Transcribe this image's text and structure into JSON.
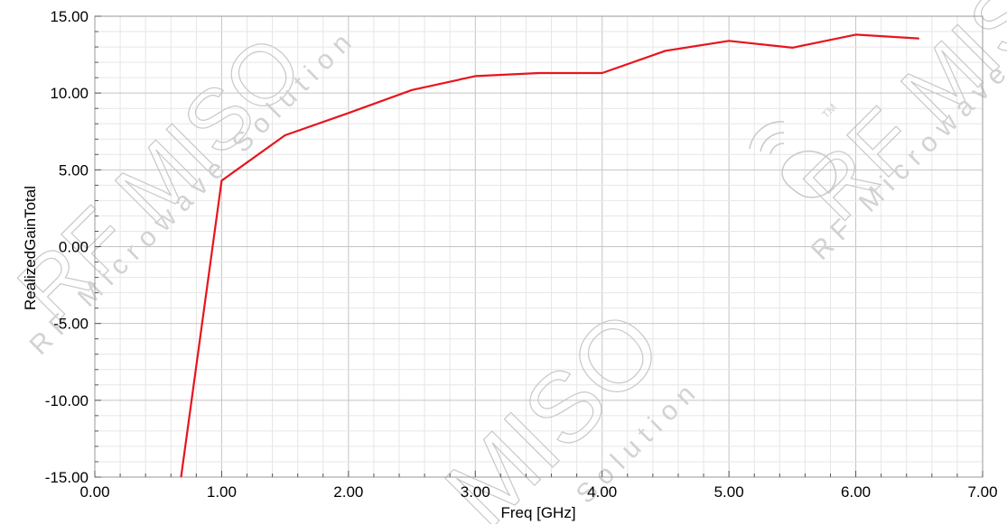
{
  "chart_data": {
    "type": "line",
    "xlabel": "Freq [GHz]",
    "ylabel": "RealizedGainTotal",
    "xlim": [
      0,
      7
    ],
    "ylim": [
      -15,
      15
    ],
    "x_ticks": [
      0,
      1,
      2,
      3,
      4,
      5,
      6,
      7
    ],
    "y_ticks": [
      -15,
      -10,
      -5,
      0,
      5,
      10,
      15
    ],
    "x_tick_labels": [
      "0.00",
      "1.00",
      "2.00",
      "3.00",
      "4.00",
      "5.00",
      "6.00",
      "7.00"
    ],
    "y_tick_labels": [
      "-15.00",
      "-10.00",
      "-5.00",
      "0.00",
      "5.00",
      "10.00",
      "15.00"
    ],
    "grid": true,
    "minor_grid": true,
    "series": [
      {
        "color": "#e8141c",
        "x": [
          0.68,
          1.0,
          1.5,
          2.0,
          2.5,
          3.0,
          3.5,
          4.0,
          4.5,
          5.0,
          5.5,
          6.0,
          6.5
        ],
        "values": [
          -15.0,
          4.3,
          7.25,
          8.7,
          10.2,
          11.1,
          11.3,
          11.3,
          12.75,
          13.4,
          12.95,
          13.8,
          13.55
        ]
      }
    ]
  },
  "watermark": {
    "brand": "RF MISO",
    "mark": "MISO",
    "tagline": "RF Microwave Solution",
    "word": "Solution",
    "tm": "TM",
    "color": "#c8c8c8"
  }
}
